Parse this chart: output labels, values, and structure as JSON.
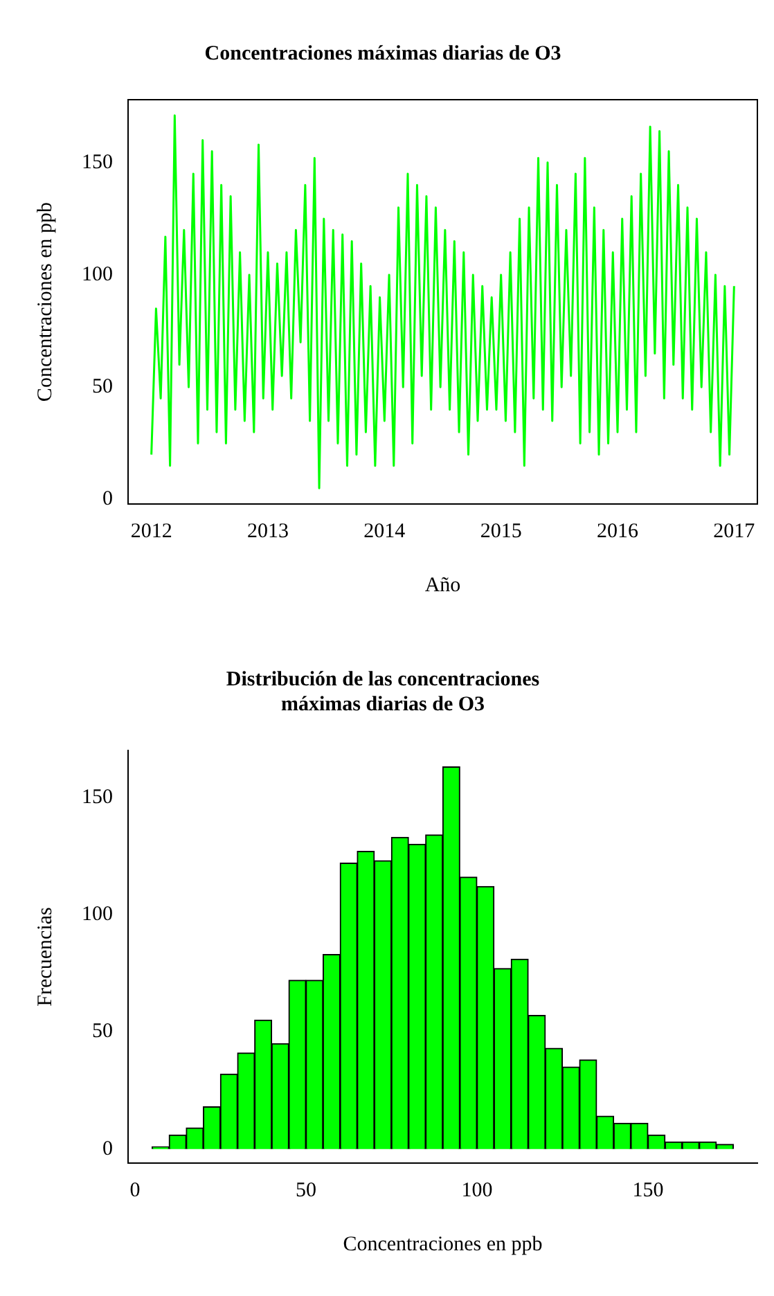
{
  "chart_data": [
    {
      "type": "line",
      "title": "Concentraciones máximas diarias de O3",
      "xlabel": "Año",
      "ylabel": "Concentraciones en ppb",
      "marker": "none",
      "grid": false,
      "x": [
        2012.0,
        2012.04,
        2012.08,
        2012.12,
        2012.16,
        2012.2,
        2012.24,
        2012.28,
        2012.32,
        2012.36,
        2012.4,
        2012.44,
        2012.48,
        2012.52,
        2012.56,
        2012.6,
        2012.64,
        2012.68,
        2012.72,
        2012.76,
        2012.8,
        2012.84,
        2012.88,
        2012.92,
        2012.96,
        2013.0,
        2013.04,
        2013.08,
        2013.12,
        2013.16,
        2013.2,
        2013.24,
        2013.28,
        2013.32,
        2013.36,
        2013.4,
        2013.44,
        2013.48,
        2013.52,
        2013.56,
        2013.6,
        2013.64,
        2013.68,
        2013.72,
        2013.76,
        2013.8,
        2013.84,
        2013.88,
        2013.92,
        2013.96,
        2014.0,
        2014.04,
        2014.08,
        2014.12,
        2014.16,
        2014.2,
        2014.24,
        2014.28,
        2014.32,
        2014.36,
        2014.4,
        2014.44,
        2014.48,
        2014.52,
        2014.56,
        2014.6,
        2014.64,
        2014.68,
        2014.72,
        2014.76,
        2014.8,
        2014.84,
        2014.88,
        2014.92,
        2014.96,
        2015.0,
        2015.04,
        2015.08,
        2015.12,
        2015.16,
        2015.2,
        2015.24,
        2015.28,
        2015.32,
        2015.36,
        2015.4,
        2015.44,
        2015.48,
        2015.52,
        2015.56,
        2015.6,
        2015.64,
        2015.68,
        2015.72,
        2015.76,
        2015.8,
        2015.84,
        2015.88,
        2015.92,
        2015.96,
        2016.0,
        2016.04,
        2016.08,
        2016.12,
        2016.16,
        2016.2,
        2016.24,
        2016.28,
        2016.32,
        2016.36,
        2016.4,
        2016.44,
        2016.48,
        2016.52,
        2016.56,
        2016.6,
        2016.64,
        2016.68,
        2016.72,
        2016.76,
        2016.8,
        2016.84,
        2016.88,
        2016.92,
        2016.96,
        2017.0
      ],
      "series": [
        {
          "color": "#00ff00",
          "values": [
            20,
            85,
            45,
            117,
            15,
            171,
            60,
            120,
            50,
            145,
            25,
            160,
            40,
            155,
            30,
            140,
            25,
            135,
            40,
            110,
            35,
            100,
            30,
            158,
            45,
            110,
            40,
            105,
            55,
            110,
            45,
            120,
            70,
            140,
            35,
            152,
            5,
            125,
            35,
            120,
            25,
            118,
            15,
            115,
            20,
            105,
            30,
            95,
            15,
            90,
            35,
            100,
            15,
            130,
            50,
            145,
            25,
            140,
            55,
            135,
            40,
            130,
            50,
            120,
            40,
            115,
            30,
            110,
            20,
            100,
            35,
            95,
            40,
            90,
            40,
            100,
            35,
            110,
            30,
            125,
            15,
            130,
            45,
            152,
            40,
            150,
            35,
            140,
            50,
            120,
            55,
            145,
            25,
            152,
            30,
            130,
            20,
            120,
            25,
            110,
            30,
            125,
            40,
            135,
            30,
            145,
            55,
            166,
            65,
            164,
            45,
            155,
            60,
            140,
            45,
            130,
            40,
            125,
            50,
            110,
            30,
            100,
            15,
            95,
            20,
            95
          ]
        }
      ],
      "xlim": [
        2011.8,
        2017.2
      ],
      "xticks": [
        2012,
        2013,
        2014,
        2015,
        2016,
        2017
      ],
      "ylim": [
        -2,
        178
      ],
      "yticks": [
        0,
        50,
        100,
        150
      ]
    },
    {
      "type": "histogram",
      "title": "Distribución de las concentraciones\nmáximas diarias de O3",
      "xlabel": "Concentraciones en ppb",
      "ylabel": "Frecuencias",
      "color": "#00ff00",
      "grid": false,
      "bins": [
        5,
        10,
        15,
        20,
        25,
        30,
        35,
        40,
        45,
        50,
        55,
        60,
        65,
        70,
        75,
        80,
        85,
        90,
        95,
        100,
        105,
        110,
        115,
        120,
        125,
        130,
        135,
        140,
        145,
        150,
        155,
        160,
        165,
        170,
        175
      ],
      "values": [
        1,
        6,
        9,
        18,
        32,
        41,
        55,
        45,
        72,
        72,
        83,
        122,
        127,
        123,
        133,
        130,
        134,
        163,
        116,
        112,
        77,
        81,
        57,
        43,
        35,
        38,
        14,
        11,
        11,
        6,
        3,
        3,
        3,
        2
      ],
      "xlim": [
        -2,
        182
      ],
      "xticks": [
        0,
        50,
        100,
        150
      ],
      "ylim": [
        -6,
        170
      ],
      "yticks": [
        0,
        50,
        100,
        150
      ]
    }
  ]
}
